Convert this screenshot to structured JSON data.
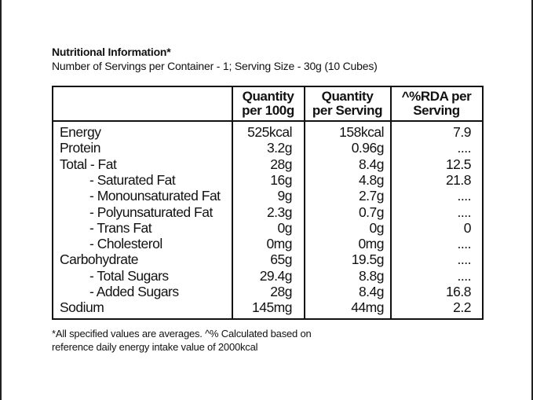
{
  "header": {
    "title": "Nutritional Information*",
    "subtitle": "Number of Servings per Container - 1;  Serving Size - 30g  (10 Cubes)"
  },
  "table": {
    "columns": [
      {
        "line1": "Quantity",
        "line2": "per 100g"
      },
      {
        "line1": "Quantity",
        "line2": "per Serving"
      },
      {
        "line1": "^%RDA per",
        "line2": "Serving"
      }
    ],
    "rows": [
      {
        "label": "Energy",
        "indent": false,
        "per100g": "525kcal",
        "perServing": "158kcal",
        "rda": "7.9"
      },
      {
        "label": "Protein",
        "indent": false,
        "per100g": "3.2g",
        "perServing": "0.96g",
        "rda": "...."
      },
      {
        "label": "Total - Fat",
        "indent": false,
        "per100g": "28g",
        "perServing": "8.4g",
        "rda": "12.5"
      },
      {
        "label": "- Saturated Fat",
        "indent": true,
        "per100g": "16g",
        "perServing": "4.8g",
        "rda": "21.8"
      },
      {
        "label": "- Monounsaturated Fat",
        "indent": true,
        "per100g": "9g",
        "perServing": "2.7g",
        "rda": "...."
      },
      {
        "label": "- Polyunsaturated Fat",
        "indent": true,
        "per100g": "2.3g",
        "perServing": "0.7g",
        "rda": "...."
      },
      {
        "label": "- Trans Fat",
        "indent": true,
        "per100g": "0g",
        "perServing": "0g",
        "rda": "0"
      },
      {
        "label": "- Cholesterol",
        "indent": true,
        "per100g": "0mg",
        "perServing": "0mg",
        "rda": "...."
      },
      {
        "label": "Carbohydrate",
        "indent": false,
        "per100g": "65g",
        "perServing": "19.5g",
        "rda": "...."
      },
      {
        "label": "- Total Sugars",
        "indent": true,
        "per100g": "29.4g",
        "perServing": "8.8g",
        "rda": "...."
      },
      {
        "label": "- Added Sugars",
        "indent": true,
        "per100g": "28g",
        "perServing": "8.4g",
        "rda": "16.8"
      },
      {
        "label": "Sodium",
        "indent": false,
        "per100g": "145mg",
        "perServing": "44mg",
        "rda": "2.2"
      }
    ]
  },
  "footnote": {
    "line1": "*All specified values are averages. ^% Calculated based on",
    "line2": "reference daily energy intake value of 2000kcal"
  }
}
